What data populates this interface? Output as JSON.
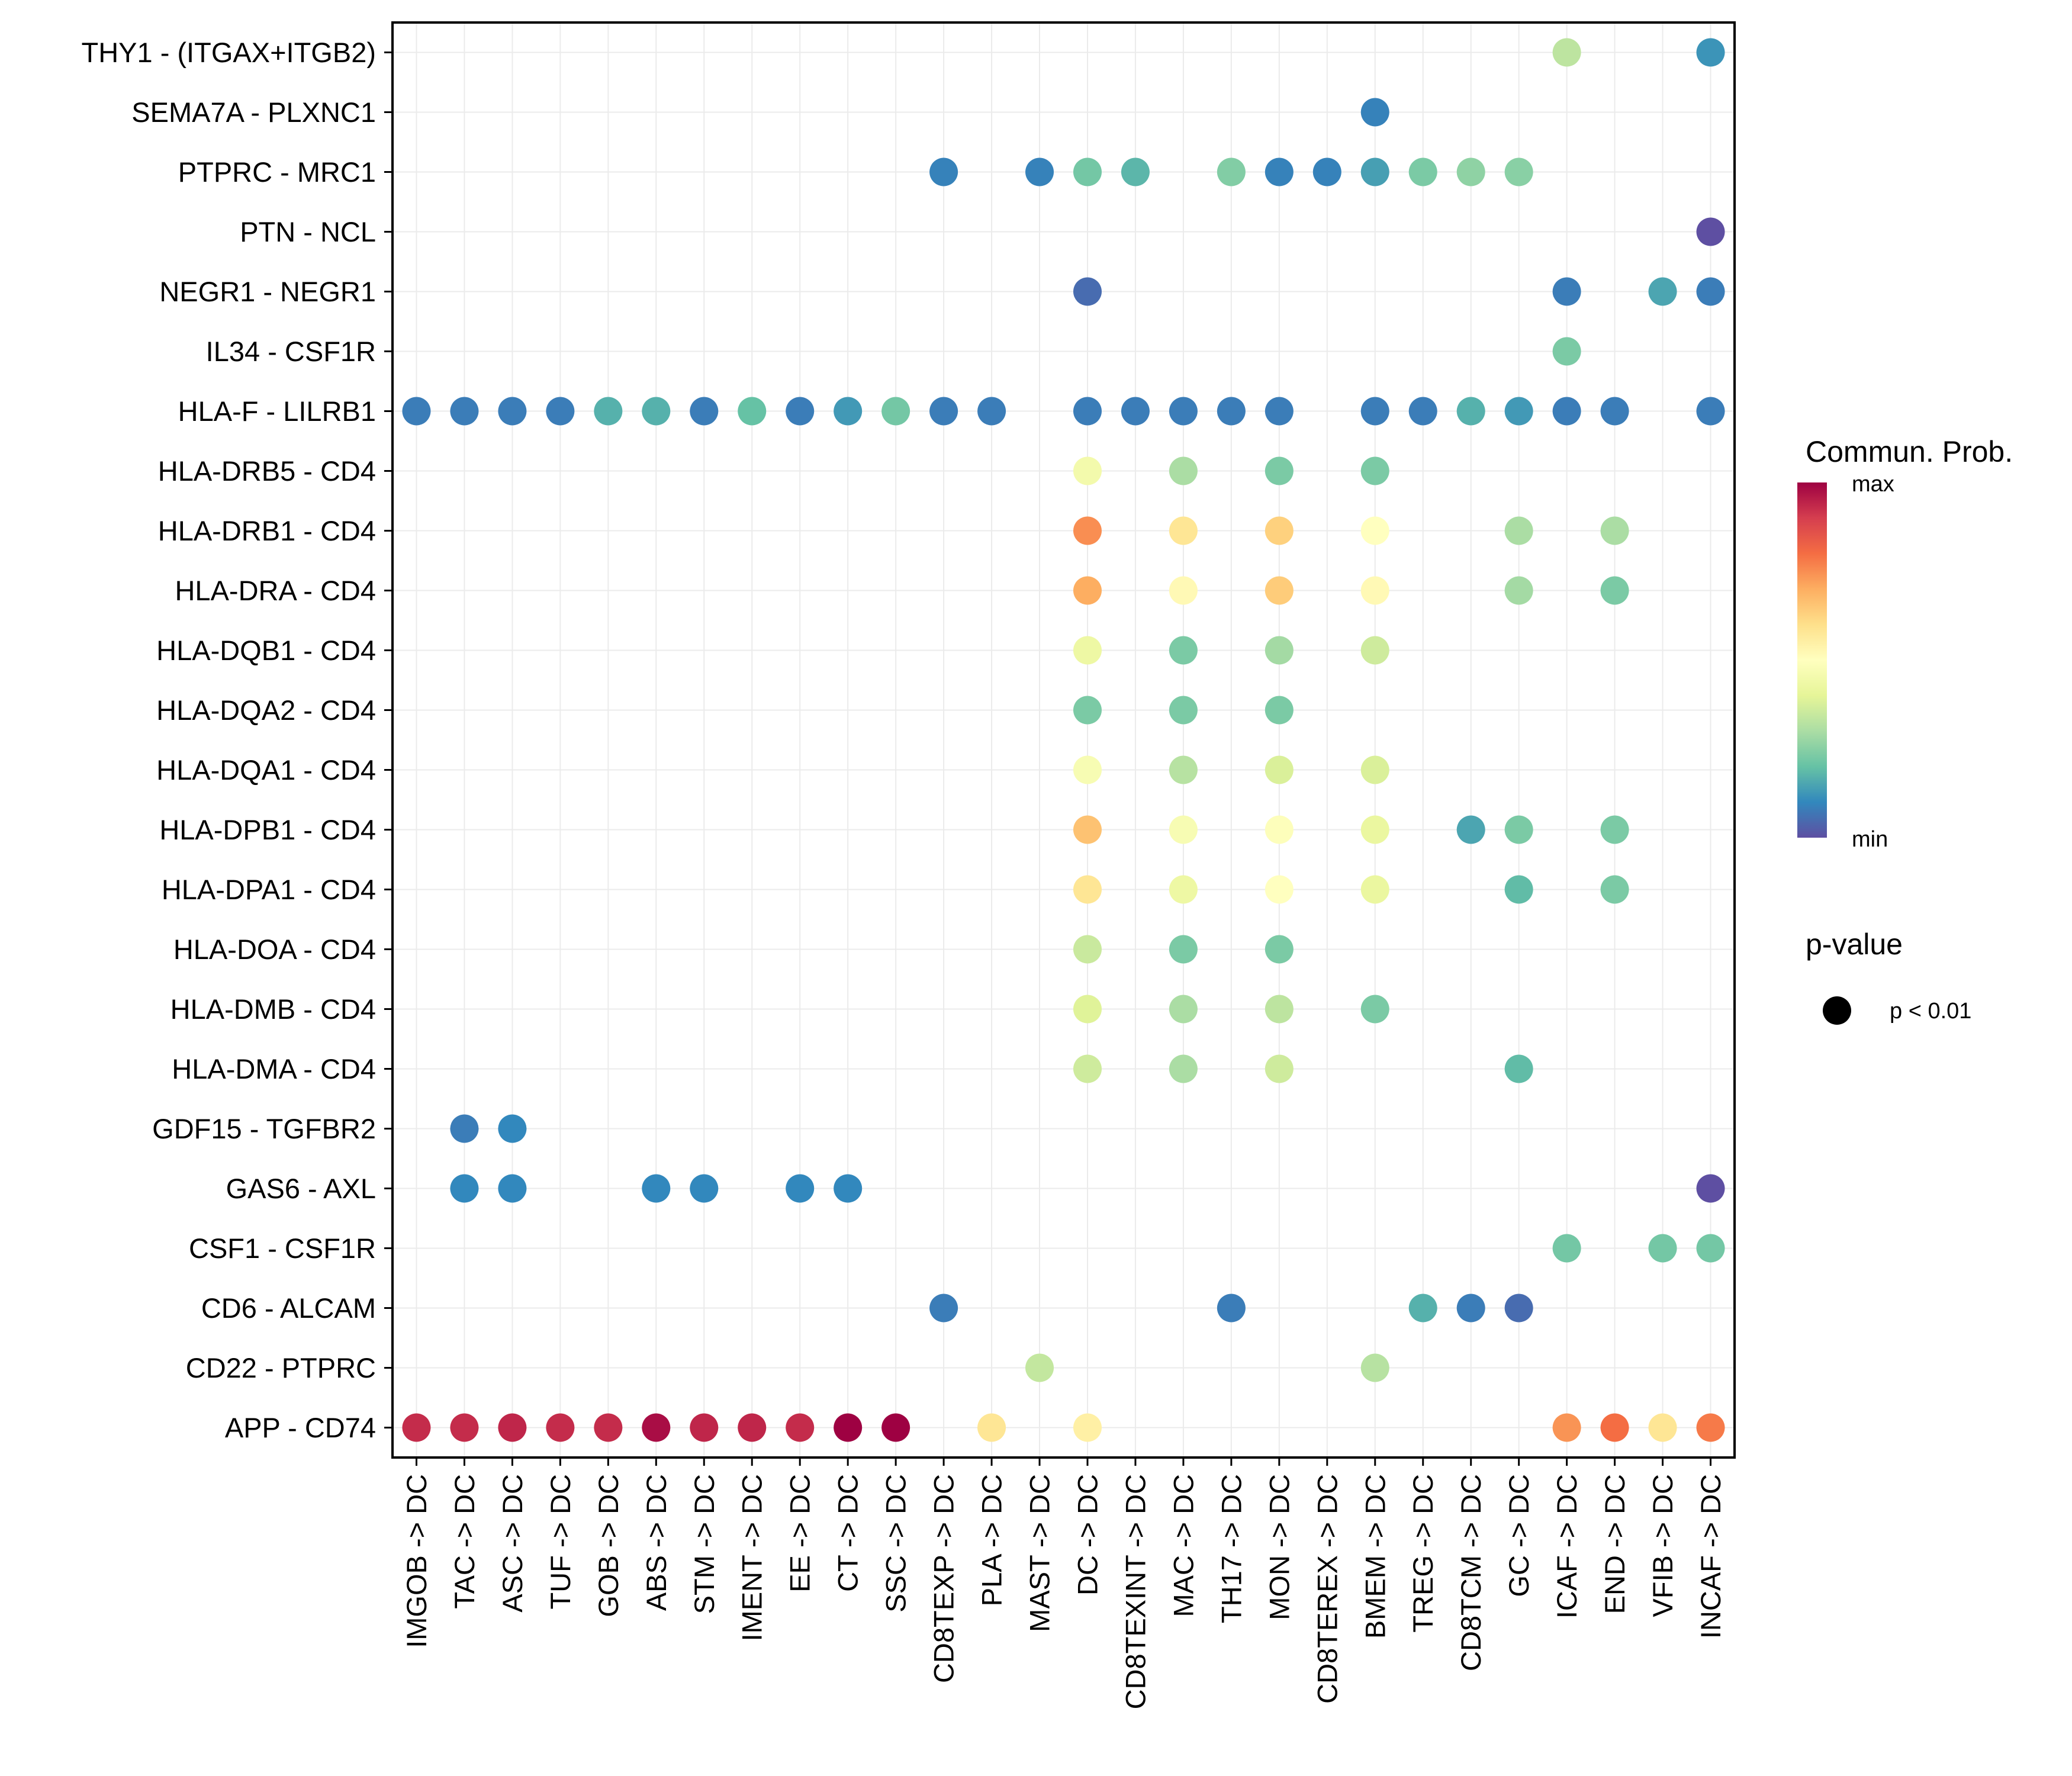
{
  "chart_data": {
    "type": "scatter",
    "subtype": "dot-matrix",
    "title": "",
    "xlabel": "",
    "ylabel": "",
    "grid": true,
    "x_categories": [
      "IMGOB -> DC",
      "TAC -> DC",
      "ASC -> DC",
      "TUF -> DC",
      "GOB -> DC",
      "ABS -> DC",
      "STM -> DC",
      "IMENT -> DC",
      "EE -> DC",
      "CT -> DC",
      "SSC -> DC",
      "CD8TEXP -> DC",
      "PLA -> DC",
      "MAST -> DC",
      "DC -> DC",
      "CD8TEXINT -> DC",
      "MAC -> DC",
      "TH17 -> DC",
      "MON -> DC",
      "CD8TEREX -> DC",
      "BMEM -> DC",
      "TREG -> DC",
      "CD8TCM -> DC",
      "GC -> DC",
      "ICAF -> DC",
      "END -> DC",
      "VFIB -> DC",
      "INCAF -> DC"
    ],
    "y_categories_top_to_bottom": [
      "THY1 - (ITGAX+ITGB2)",
      "SEMA7A - PLXNC1",
      "PTPRC - MRC1",
      "PTN - NCL",
      "NEGR1 - NEGR1",
      "IL34 - CSF1R",
      "HLA-F - LILRB1",
      "HLA-DRB5 - CD4",
      "HLA-DRB1 - CD4",
      "HLA-DRA - CD4",
      "HLA-DQB1 - CD4",
      "HLA-DQA2 - CD4",
      "HLA-DQA1 - CD4",
      "HLA-DPB1 - CD4",
      "HLA-DPA1 - CD4",
      "HLA-DOA - CD4",
      "HLA-DMB - CD4",
      "HLA-DMA - CD4",
      "GDF15 - TGFBR2",
      "GAS6 - AXL",
      "CSF1 - CSF1R",
      "CD6 - ALCAM",
      "CD22 - PTPRC",
      "APP - CD74"
    ],
    "value_note": "Normalized communication probability (0 = min, 1 = max), estimated from dot color; all dots p < 0.01",
    "points": [
      {
        "y": "THY1 - (ITGAX+ITGB2)",
        "x": "ICAF -> DC",
        "prob": 0.33
      },
      {
        "y": "THY1 - (ITGAX+ITGB2)",
        "x": "INCAF -> DC",
        "prob": 0.12
      },
      {
        "y": "SEMA7A - PLXNC1",
        "x": "BMEM -> DC",
        "prob": 0.09
      },
      {
        "y": "PTPRC - MRC1",
        "x": "CD8TEXP -> DC",
        "prob": 0.09
      },
      {
        "y": "PTPRC - MRC1",
        "x": "MAST -> DC",
        "prob": 0.09
      },
      {
        "y": "PTPRC - MRC1",
        "x": "DC -> DC",
        "prob": 0.22
      },
      {
        "y": "PTPRC - MRC1",
        "x": "CD8TEXINT -> DC",
        "prob": 0.18
      },
      {
        "y": "PTPRC - MRC1",
        "x": "TH17 -> DC",
        "prob": 0.24
      },
      {
        "y": "PTPRC - MRC1",
        "x": "MON -> DC",
        "prob": 0.09
      },
      {
        "y": "PTPRC - MRC1",
        "x": "CD8TEREX -> DC",
        "prob": 0.09
      },
      {
        "y": "PTPRC - MRC1",
        "x": "BMEM -> DC",
        "prob": 0.14
      },
      {
        "y": "PTPRC - MRC1",
        "x": "TREG -> DC",
        "prob": 0.23
      },
      {
        "y": "PTPRC - MRC1",
        "x": "CD8TCM -> DC",
        "prob": 0.26
      },
      {
        "y": "PTPRC - MRC1",
        "x": "GC -> DC",
        "prob": 0.25
      },
      {
        "y": "PTN - NCL",
        "x": "INCAF -> DC",
        "prob": 0.0
      },
      {
        "y": "NEGR1 - NEGR1",
        "x": "DC -> DC",
        "prob": 0.05
      },
      {
        "y": "NEGR1 - NEGR1",
        "x": "ICAF -> DC",
        "prob": 0.08
      },
      {
        "y": "NEGR1 - NEGR1",
        "x": "VFIB -> DC",
        "prob": 0.15
      },
      {
        "y": "NEGR1 - NEGR1",
        "x": "INCAF -> DC",
        "prob": 0.08
      },
      {
        "y": "IL34 - CSF1R",
        "x": "ICAF -> DC",
        "prob": 0.23
      },
      {
        "y": "HLA-F - LILRB1",
        "x": "IMGOB -> DC",
        "prob": 0.08
      },
      {
        "y": "HLA-F - LILRB1",
        "x": "TAC -> DC",
        "prob": 0.08
      },
      {
        "y": "HLA-F - LILRB1",
        "x": "ASC -> DC",
        "prob": 0.08
      },
      {
        "y": "HLA-F - LILRB1",
        "x": "TUF -> DC",
        "prob": 0.08
      },
      {
        "y": "HLA-F - LILRB1",
        "x": "GOB -> DC",
        "prob": 0.17
      },
      {
        "y": "HLA-F - LILRB1",
        "x": "ABS -> DC",
        "prob": 0.17
      },
      {
        "y": "HLA-F - LILRB1",
        "x": "STM -> DC",
        "prob": 0.08
      },
      {
        "y": "HLA-F - LILRB1",
        "x": "IMENT -> DC",
        "prob": 0.2
      },
      {
        "y": "HLA-F - LILRB1",
        "x": "EE -> DC",
        "prob": 0.08
      },
      {
        "y": "HLA-F - LILRB1",
        "x": "CT -> DC",
        "prob": 0.13
      },
      {
        "y": "HLA-F - LILRB1",
        "x": "SSC -> DC",
        "prob": 0.22
      },
      {
        "y": "HLA-F - LILRB1",
        "x": "CD8TEXP -> DC",
        "prob": 0.08
      },
      {
        "y": "HLA-F - LILRB1",
        "x": "PLA -> DC",
        "prob": 0.08
      },
      {
        "y": "HLA-F - LILRB1",
        "x": "DC -> DC",
        "prob": 0.08
      },
      {
        "y": "HLA-F - LILRB1",
        "x": "CD8TEXINT -> DC",
        "prob": 0.08
      },
      {
        "y": "HLA-F - LILRB1",
        "x": "MAC -> DC",
        "prob": 0.08
      },
      {
        "y": "HLA-F - LILRB1",
        "x": "TH17 -> DC",
        "prob": 0.08
      },
      {
        "y": "HLA-F - LILRB1",
        "x": "MON -> DC",
        "prob": 0.08
      },
      {
        "y": "HLA-F - LILRB1",
        "x": "BMEM -> DC",
        "prob": 0.08
      },
      {
        "y": "HLA-F - LILRB1",
        "x": "TREG -> DC",
        "prob": 0.08
      },
      {
        "y": "HLA-F - LILRB1",
        "x": "CD8TCM -> DC",
        "prob": 0.17
      },
      {
        "y": "HLA-F - LILRB1",
        "x": "GC -> DC",
        "prob": 0.13
      },
      {
        "y": "HLA-F - LILRB1",
        "x": "ICAF -> DC",
        "prob": 0.08
      },
      {
        "y": "HLA-F - LILRB1",
        "x": "END -> DC",
        "prob": 0.08
      },
      {
        "y": "HLA-F - LILRB1",
        "x": "INCAF -> DC",
        "prob": 0.08
      },
      {
        "y": "HLA-DRB5 - CD4",
        "x": "DC -> DC",
        "prob": 0.45
      },
      {
        "y": "HLA-DRB5 - CD4",
        "x": "MAC -> DC",
        "prob": 0.3
      },
      {
        "y": "HLA-DRB5 - CD4",
        "x": "MON -> DC",
        "prob": 0.23
      },
      {
        "y": "HLA-DRB5 - CD4",
        "x": "BMEM -> DC",
        "prob": 0.23
      },
      {
        "y": "HLA-DRB1 - CD4",
        "x": "DC -> DC",
        "prob": 0.75
      },
      {
        "y": "HLA-DRB1 - CD4",
        "x": "MAC -> DC",
        "prob": 0.58
      },
      {
        "y": "HLA-DRB1 - CD4",
        "x": "MON -> DC",
        "prob": 0.63
      },
      {
        "y": "HLA-DRB1 - CD4",
        "x": "BMEM -> DC",
        "prob": 0.5
      },
      {
        "y": "HLA-DRB1 - CD4",
        "x": "GC -> DC",
        "prob": 0.3
      },
      {
        "y": "HLA-DRB1 - CD4",
        "x": "END -> DC",
        "prob": 0.3
      },
      {
        "y": "HLA-DRA - CD4",
        "x": "DC -> DC",
        "prob": 0.7
      },
      {
        "y": "HLA-DRA - CD4",
        "x": "MAC -> DC",
        "prob": 0.52
      },
      {
        "y": "HLA-DRA - CD4",
        "x": "MON -> DC",
        "prob": 0.64
      },
      {
        "y": "HLA-DRA - CD4",
        "x": "BMEM -> DC",
        "prob": 0.52
      },
      {
        "y": "HLA-DRA - CD4",
        "x": "GC -> DC",
        "prob": 0.29
      },
      {
        "y": "HLA-DRA - CD4",
        "x": "END -> DC",
        "prob": 0.23
      },
      {
        "y": "HLA-DQB1 - CD4",
        "x": "DC -> DC",
        "prob": 0.43
      },
      {
        "y": "HLA-DQB1 - CD4",
        "x": "MAC -> DC",
        "prob": 0.23
      },
      {
        "y": "HLA-DQB1 - CD4",
        "x": "MON -> DC",
        "prob": 0.29
      },
      {
        "y": "HLA-DQB1 - CD4",
        "x": "BMEM -> DC",
        "prob": 0.36
      },
      {
        "y": "HLA-DQA2 - CD4",
        "x": "DC -> DC",
        "prob": 0.23
      },
      {
        "y": "HLA-DQA2 - CD4",
        "x": "MAC -> DC",
        "prob": 0.23
      },
      {
        "y": "HLA-DQA2 - CD4",
        "x": "MON -> DC",
        "prob": 0.23
      },
      {
        "y": "HLA-DQA1 - CD4",
        "x": "DC -> DC",
        "prob": 0.47
      },
      {
        "y": "HLA-DQA1 - CD4",
        "x": "MAC -> DC",
        "prob": 0.32
      },
      {
        "y": "HLA-DQA1 - CD4",
        "x": "MON -> DC",
        "prob": 0.38
      },
      {
        "y": "HLA-DQA1 - CD4",
        "x": "BMEM -> DC",
        "prob": 0.38
      },
      {
        "y": "HLA-DPB1 - CD4",
        "x": "DC -> DC",
        "prob": 0.66
      },
      {
        "y": "HLA-DPB1 - CD4",
        "x": "MAC -> DC",
        "prob": 0.47
      },
      {
        "y": "HLA-DPB1 - CD4",
        "x": "MON -> DC",
        "prob": 0.49
      },
      {
        "y": "HLA-DPB1 - CD4",
        "x": "BMEM -> DC",
        "prob": 0.42
      },
      {
        "y": "HLA-DPB1 - CD4",
        "x": "CD8TCM -> DC",
        "prob": 0.15
      },
      {
        "y": "HLA-DPB1 - CD4",
        "x": "GC -> DC",
        "prob": 0.23
      },
      {
        "y": "HLA-DPB1 - CD4",
        "x": "END -> DC",
        "prob": 0.23
      },
      {
        "y": "HLA-DPA1 - CD4",
        "x": "DC -> DC",
        "prob": 0.58
      },
      {
        "y": "HLA-DPA1 - CD4",
        "x": "MAC -> DC",
        "prob": 0.43
      },
      {
        "y": "HLA-DPA1 - CD4",
        "x": "MON -> DC",
        "prob": 0.5
      },
      {
        "y": "HLA-DPA1 - CD4",
        "x": "BMEM -> DC",
        "prob": 0.42
      },
      {
        "y": "HLA-DPA1 - CD4",
        "x": "GC -> DC",
        "prob": 0.19
      },
      {
        "y": "HLA-DPA1 - CD4",
        "x": "END -> DC",
        "prob": 0.23
      },
      {
        "y": "HLA-DOA - CD4",
        "x": "DC -> DC",
        "prob": 0.35
      },
      {
        "y": "HLA-DOA - CD4",
        "x": "MAC -> DC",
        "prob": 0.23
      },
      {
        "y": "HLA-DOA - CD4",
        "x": "MON -> DC",
        "prob": 0.23
      },
      {
        "y": "HLA-DMB - CD4",
        "x": "DC -> DC",
        "prob": 0.39
      },
      {
        "y": "HLA-DMB - CD4",
        "x": "MAC -> DC",
        "prob": 0.3
      },
      {
        "y": "HLA-DMB - CD4",
        "x": "MON -> DC",
        "prob": 0.33
      },
      {
        "y": "HLA-DMB - CD4",
        "x": "BMEM -> DC",
        "prob": 0.23
      },
      {
        "y": "HLA-DMA - CD4",
        "x": "DC -> DC",
        "prob": 0.36
      },
      {
        "y": "HLA-DMA - CD4",
        "x": "MAC -> DC",
        "prob": 0.3
      },
      {
        "y": "HLA-DMA - CD4",
        "x": "MON -> DC",
        "prob": 0.36
      },
      {
        "y": "HLA-DMA - CD4",
        "x": "GC -> DC",
        "prob": 0.19
      },
      {
        "y": "GDF15 - TGFBR2",
        "x": "TAC -> DC",
        "prob": 0.08
      },
      {
        "y": "GDF15 - TGFBR2",
        "x": "ASC -> DC",
        "prob": 0.1
      },
      {
        "y": "GAS6 - AXL",
        "x": "TAC -> DC",
        "prob": 0.1
      },
      {
        "y": "GAS6 - AXL",
        "x": "ASC -> DC",
        "prob": 0.1
      },
      {
        "y": "GAS6 - AXL",
        "x": "ABS -> DC",
        "prob": 0.1
      },
      {
        "y": "GAS6 - AXL",
        "x": "STM -> DC",
        "prob": 0.1
      },
      {
        "y": "GAS6 - AXL",
        "x": "EE -> DC",
        "prob": 0.1
      },
      {
        "y": "GAS6 - AXL",
        "x": "CT -> DC",
        "prob": 0.1
      },
      {
        "y": "GAS6 - AXL",
        "x": "INCAF -> DC",
        "prob": 0.0
      },
      {
        "y": "CSF1 - CSF1R",
        "x": "ICAF -> DC",
        "prob": 0.22
      },
      {
        "y": "CSF1 - CSF1R",
        "x": "VFIB -> DC",
        "prob": 0.22
      },
      {
        "y": "CSF1 - CSF1R",
        "x": "INCAF -> DC",
        "prob": 0.22
      },
      {
        "y": "CD6 - ALCAM",
        "x": "CD8TEXP -> DC",
        "prob": 0.08
      },
      {
        "y": "CD6 - ALCAM",
        "x": "TH17 -> DC",
        "prob": 0.08
      },
      {
        "y": "CD6 - ALCAM",
        "x": "TREG -> DC",
        "prob": 0.17
      },
      {
        "y": "CD6 - ALCAM",
        "x": "CD8TCM -> DC",
        "prob": 0.08
      },
      {
        "y": "CD6 - ALCAM",
        "x": "GC -> DC",
        "prob": 0.05
      },
      {
        "y": "CD22 - PTPRC",
        "x": "MAST -> DC",
        "prob": 0.34
      },
      {
        "y": "CD22 - PTPRC",
        "x": "BMEM -> DC",
        "prob": 0.32
      },
      {
        "y": "APP - CD74",
        "x": "IMGOB -> DC",
        "prob": 0.93
      },
      {
        "y": "APP - CD74",
        "x": "TAC -> DC",
        "prob": 0.93
      },
      {
        "y": "APP - CD74",
        "x": "ASC -> DC",
        "prob": 0.94
      },
      {
        "y": "APP - CD74",
        "x": "TUF -> DC",
        "prob": 0.93
      },
      {
        "y": "APP - CD74",
        "x": "GOB -> DC",
        "prob": 0.93
      },
      {
        "y": "APP - CD74",
        "x": "ABS -> DC",
        "prob": 0.98
      },
      {
        "y": "APP - CD74",
        "x": "STM -> DC",
        "prob": 0.94
      },
      {
        "y": "APP - CD74",
        "x": "IMENT -> DC",
        "prob": 0.94
      },
      {
        "y": "APP - CD74",
        "x": "EE -> DC",
        "prob": 0.93
      },
      {
        "y": "APP - CD74",
        "x": "CT -> DC",
        "prob": 1.0
      },
      {
        "y": "APP - CD74",
        "x": "SSC -> DC",
        "prob": 1.0
      },
      {
        "y": "APP - CD74",
        "x": "PLA -> DC",
        "prob": 0.58
      },
      {
        "y": "APP - CD74",
        "x": "DC -> DC",
        "prob": 0.55
      },
      {
        "y": "APP - CD74",
        "x": "ICAF -> DC",
        "prob": 0.74
      },
      {
        "y": "APP - CD74",
        "x": "END -> DC",
        "prob": 0.8
      },
      {
        "y": "APP - CD74",
        "x": "VFIB -> DC",
        "prob": 0.58
      },
      {
        "y": "APP - CD74",
        "x": "INCAF -> DC",
        "prob": 0.78
      }
    ],
    "legend": {
      "color": {
        "title": "Commun. Prob.",
        "max_label": "max",
        "min_label": "min",
        "palette": [
          "#5E4FA2",
          "#3288BD",
          "#66C2A5",
          "#ABDDA4",
          "#E6F598",
          "#FFFFBF",
          "#FEE08B",
          "#FDAE61",
          "#F46D43",
          "#D53E4F",
          "#9E0142"
        ],
        "placement": "right"
      },
      "size": {
        "title": "p-value",
        "entries": [
          "p < 0.01"
        ],
        "placement": "right"
      }
    }
  }
}
